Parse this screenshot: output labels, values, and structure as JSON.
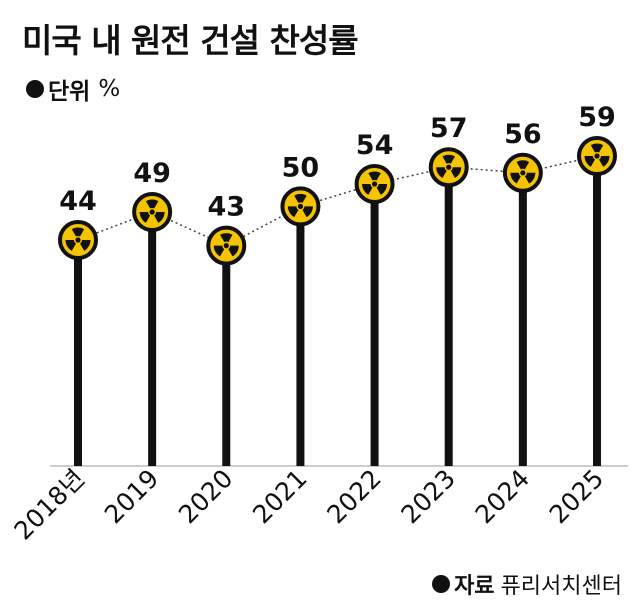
{
  "header": {
    "title": "미국 내 원전 건설 찬성률",
    "unit_label": "단위",
    "unit_value": "%"
  },
  "source": {
    "label": "자료",
    "value": "퓨리서치센터"
  },
  "colors": {
    "stem": "#111111",
    "badge_fill": "#f5c400",
    "badge_outline": "#111111",
    "connector": "#444444"
  },
  "chart_data": {
    "type": "line",
    "categories": [
      "2018년",
      "2019",
      "2020",
      "2021",
      "2022",
      "2023",
      "2024",
      "2025"
    ],
    "values": [
      44,
      49,
      43,
      50,
      54,
      57,
      56,
      59
    ],
    "data_labels": [
      "44",
      "49",
      "43",
      "50",
      "54",
      "57",
      "56",
      "59"
    ],
    "markers": "radiation-symbol",
    "connector_style": "dotted",
    "grid": false
  }
}
